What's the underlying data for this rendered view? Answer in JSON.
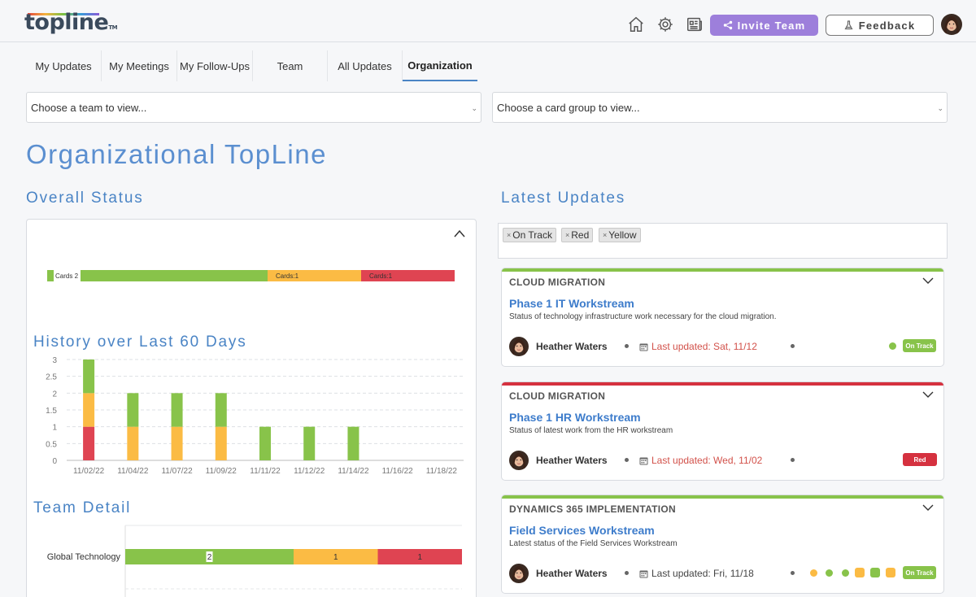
{
  "header": {
    "logo_text": "topline",
    "logo_tm": "TM",
    "invite_label": "Invite Team",
    "feedback_label": "Feedback",
    "icons": [
      "home-icon",
      "gear-icon",
      "newspaper-icon",
      "share-icon",
      "flask-icon"
    ]
  },
  "tabs": [
    {
      "label": "My Updates"
    },
    {
      "label": "My Meetings"
    },
    {
      "label": "My Follow-Ups"
    },
    {
      "label": "Team"
    },
    {
      "label": "All Updates"
    },
    {
      "label": "Organization",
      "active": true
    }
  ],
  "filters": {
    "team_placeholder": "Choose a team to view...",
    "group_placeholder": "Choose a card group to view..."
  },
  "page_title": "Organizational TopLine",
  "overall": {
    "title": "Overall Status",
    "segments": [
      {
        "label": "Cards 2",
        "value": 2,
        "status": "green"
      },
      {
        "label": "Cards:1",
        "value": 1,
        "status": "yellow"
      },
      {
        "label": "Cards:1",
        "value": 1,
        "status": "red"
      }
    ]
  },
  "history": {
    "title": "History over Last 60 Days",
    "chart_data": {
      "type": "bar",
      "stacked": true,
      "categories": [
        "11/02/22",
        "11/04/22",
        "11/07/22",
        "11/09/22",
        "11/11/22",
        "11/12/22",
        "11/14/22",
        "11/16/22",
        "11/18/22"
      ],
      "series": [
        {
          "name": "Red",
          "values": [
            1,
            0,
            0,
            0,
            0,
            0,
            0,
            0,
            0
          ]
        },
        {
          "name": "Yellow",
          "values": [
            1,
            1,
            1,
            1,
            0,
            0,
            0,
            0,
            0
          ]
        },
        {
          "name": "Green",
          "values": [
            1,
            1,
            1,
            1,
            1,
            1,
            1,
            0,
            0
          ]
        }
      ],
      "yticks": [
        "0",
        "0.5",
        "1",
        "1.5",
        "2",
        "2.5",
        "3"
      ],
      "ylim": [
        0,
        3
      ],
      "grid": true,
      "colors": {
        "Red": "#df4452",
        "Yellow": "#fbbb44",
        "Green": "#88c34a"
      }
    }
  },
  "team_detail": {
    "title": "Team Detail",
    "chart_data": {
      "type": "bar",
      "orientation": "horizontal",
      "stacked": true,
      "categories": [
        "Global Technology"
      ],
      "series": [
        {
          "name": "Green",
          "values": [
            2
          ]
        },
        {
          "name": "Yellow",
          "values": [
            1
          ]
        },
        {
          "name": "Red",
          "values": [
            1
          ]
        }
      ]
    }
  },
  "latest": {
    "title": "Latest Updates",
    "chips": [
      {
        "label": "On Track"
      },
      {
        "label": "Red"
      },
      {
        "label": "Yellow"
      }
    ],
    "cards": [
      {
        "group": "CLOUD MIGRATION",
        "title": "Phase 1 IT Workstream",
        "desc": "Status of technology infrastructure work necessary for the cloud migration.",
        "owner": "Heather Waters",
        "updated": "Last updated: Sat, 11/12",
        "status": "On Track",
        "color": "#88c34a",
        "updated_color": "#d2514a"
      },
      {
        "group": "CLOUD MIGRATION",
        "title": "Phase 1 HR Workstream",
        "desc": "Status of latest work from the HR workstream",
        "owner": "Heather Waters",
        "updated": "Last updated: Wed, 11/02",
        "status": "Red",
        "color": "#d5313f",
        "updated_color": "#d2514a"
      },
      {
        "group": "DYNAMICS 365 IMPLEMENTATION",
        "title": "Field Services Workstream",
        "desc": "Latest status of the Field Services Workstream",
        "owner": "Heather Waters",
        "updated": "Last updated: Fri, 11/18",
        "status": "On Track",
        "color": "#88c34a",
        "updated_color": "#444444"
      }
    ]
  }
}
